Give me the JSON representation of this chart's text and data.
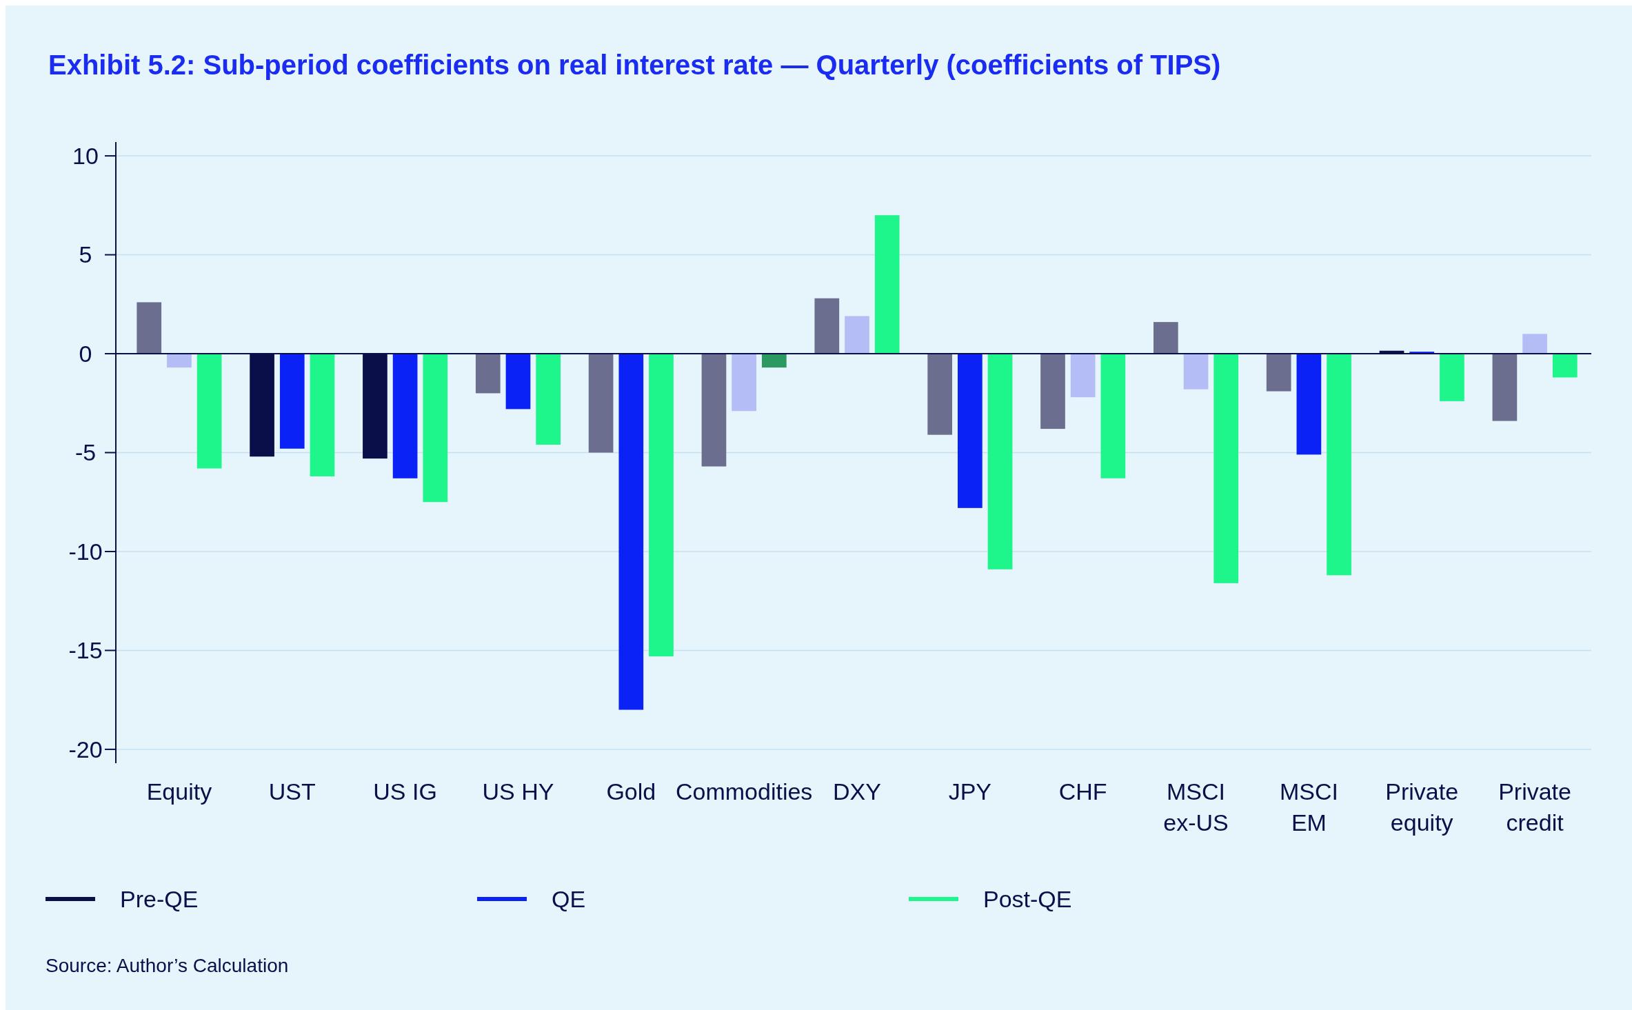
{
  "chart_data": {
    "type": "bar",
    "title": "Exhibit 5.2: Sub-period coefficients on real interest rate — Quarterly (coefficients of TIPS)",
    "categories": [
      "Equity",
      "UST",
      "US IG",
      "US HY",
      "Gold",
      "Commodities",
      "DXY",
      "JPY",
      "CHF",
      "MSCI ex-US",
      "MSCI EM",
      "Private equity",
      "Private credit"
    ],
    "series": [
      {
        "name": "Pre-QE",
        "color": "#0a0f4a",
        "colors": [
          "#6b6e8e",
          "#0a0f4a",
          "#0a0f4a",
          "#6b6e8e",
          "#6b6e8e",
          "#6b6e8e",
          "#6b6e8e",
          "#6b6e8e",
          "#6b6e8e",
          "#6b6e8e",
          "#6b6e8e",
          "#0a0f4a",
          "#6b6e8e"
        ],
        "values": [
          2.6,
          -5.2,
          -5.3,
          -2.0,
          -5.0,
          -5.7,
          2.8,
          -4.1,
          -3.8,
          1.6,
          -1.9,
          0.15,
          -3.4
        ]
      },
      {
        "name": "QE",
        "color": "#0a22f5",
        "colors": [
          "#b4bdf5",
          "#0a22f5",
          "#0a22f5",
          "#0a22f5",
          "#0a22f5",
          "#b4bdf5",
          "#b4bdf5",
          "#0a22f5",
          "#b4bdf5",
          "#b4bdf5",
          "#0a22f5",
          "#0a22f5",
          "#b4bdf5"
        ],
        "values": [
          -0.7,
          -4.8,
          -6.3,
          -2.8,
          -18.0,
          -2.9,
          1.9,
          -7.8,
          -2.2,
          -1.8,
          -5.1,
          0.1,
          1.0
        ]
      },
      {
        "name": "Post-QE",
        "color": "#1ef58a",
        "colors": [
          "#1ef58a",
          "#1ef58a",
          "#1ef58a",
          "#1ef58a",
          "#1ef58a",
          "#2a9a60",
          "#1ef58a",
          "#1ef58a",
          "#1ef58a",
          "#1ef58a",
          "#1ef58a",
          "#1ef58a",
          "#1ef58a"
        ],
        "values": [
          -5.8,
          -6.2,
          -7.5,
          -4.6,
          -15.3,
          -0.7,
          7.0,
          -10.9,
          -6.3,
          -11.6,
          -11.2,
          -2.4,
          -1.2
        ]
      }
    ],
    "ylim": [
      -20.7,
      10.7
    ],
    "yticks": [
      -20,
      -15,
      -10,
      -5,
      0,
      5,
      10
    ],
    "grid": "y",
    "legend": "bottom left",
    "annotations": [
      "Source: Author’s Calculation"
    ]
  }
}
